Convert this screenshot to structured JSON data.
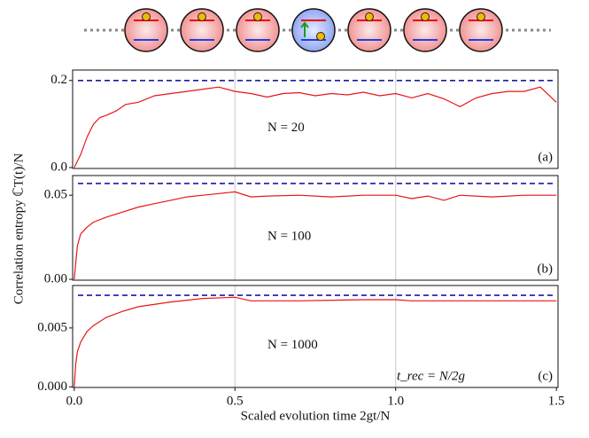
{
  "chart_data": [
    {
      "type": "line",
      "annotation": "N = 20",
      "panel_label": "(a)",
      "xlim": [
        -0.005,
        1.505
      ],
      "xticks": [],
      "ylim": [
        -0.002,
        0.224
      ],
      "yticks": [
        {
          "value": 0,
          "label": "0.0"
        },
        0.2
      ],
      "reference_line": {
        "value": 0.2,
        "color": "#1a1aa6"
      },
      "series": [
        {
          "color": "#e8151b",
          "x": [
            0,
            0.02,
            0.04,
            0.06,
            0.08,
            0.1,
            0.13,
            0.16,
            0.2,
            0.25,
            0.3,
            0.35,
            0.4,
            0.45,
            0.5,
            0.55,
            0.6,
            0.65,
            0.7,
            0.75,
            0.8,
            0.85,
            0.9,
            0.95,
            1.0,
            1.05,
            1.1,
            1.15,
            1.2,
            1.25,
            1.3,
            1.35,
            1.4,
            1.45,
            1.5
          ],
          "values": [
            0,
            0.03,
            0.07,
            0.1,
            0.115,
            0.12,
            0.13,
            0.145,
            0.15,
            0.165,
            0.17,
            0.175,
            0.18,
            0.185,
            0.175,
            0.17,
            0.162,
            0.17,
            0.172,
            0.165,
            0.17,
            0.167,
            0.173,
            0.165,
            0.17,
            0.16,
            0.17,
            0.158,
            0.14,
            0.16,
            0.17,
            0.175,
            0.175,
            0.185,
            0.15
          ]
        }
      ]
    },
    {
      "type": "line",
      "annotation": "N = 100",
      "panel_label": "(b)",
      "xlim": [
        -0.005,
        1.505
      ],
      "xticks": [],
      "ylim": [
        -0.0005,
        0.0617
      ],
      "yticks": [
        {
          "value": 0,
          "label": "0.00"
        },
        0.05
      ],
      "reference_line": {
        "value": 0.057,
        "color": "#1a1aa6"
      },
      "series": [
        {
          "color": "#e8151b",
          "x": [
            0,
            0.01,
            0.02,
            0.04,
            0.06,
            0.1,
            0.15,
            0.2,
            0.25,
            0.3,
            0.35,
            0.4,
            0.45,
            0.5,
            0.55,
            0.6,
            0.7,
            0.8,
            0.9,
            1.0,
            1.05,
            1.1,
            1.15,
            1.2,
            1.3,
            1.4,
            1.5
          ],
          "values": [
            0,
            0.02,
            0.027,
            0.031,
            0.034,
            0.037,
            0.04,
            0.043,
            0.045,
            0.047,
            0.049,
            0.05,
            0.051,
            0.052,
            0.049,
            0.0495,
            0.05,
            0.049,
            0.05,
            0.05,
            0.048,
            0.0495,
            0.047,
            0.05,
            0.049,
            0.05,
            0.05
          ]
        }
      ]
    },
    {
      "type": "line",
      "annotation": "N = 1000",
      "panel_label": "(c)",
      "extra_label": "t_rec = N/2g",
      "xlim": [
        -0.005,
        1.505
      ],
      "xticks": [
        {
          "value": 0,
          "label": "0.0"
        },
        0.5,
        {
          "value": 1,
          "label": "1.0"
        },
        1.5
      ],
      "xlabel": "Scaled evolution time 2gt/N",
      "ylim": [
        -5e-05,
        0.0086
      ],
      "yticks": [
        {
          "value": 0,
          "label": "0.000"
        },
        0.005
      ],
      "ylabel": "Correlation entropy ℂT(t)/N",
      "reference_line": {
        "value": 0.00777,
        "color": "#1a1aa6"
      },
      "series": [
        {
          "color": "#e8151b",
          "x": [
            0,
            0.005,
            0.01,
            0.02,
            0.04,
            0.06,
            0.1,
            0.15,
            0.2,
            0.3,
            0.4,
            0.5,
            0.55,
            0.7,
            0.9,
            1.0,
            1.05,
            1.2,
            1.5
          ],
          "values": [
            0,
            0.002,
            0.003,
            0.0038,
            0.0047,
            0.0052,
            0.0059,
            0.0064,
            0.0068,
            0.0072,
            0.0075,
            0.0076,
            0.0073,
            0.0073,
            0.0074,
            0.0074,
            0.0073,
            0.0073,
            0.0073
          ]
        }
      ]
    }
  ]
}
